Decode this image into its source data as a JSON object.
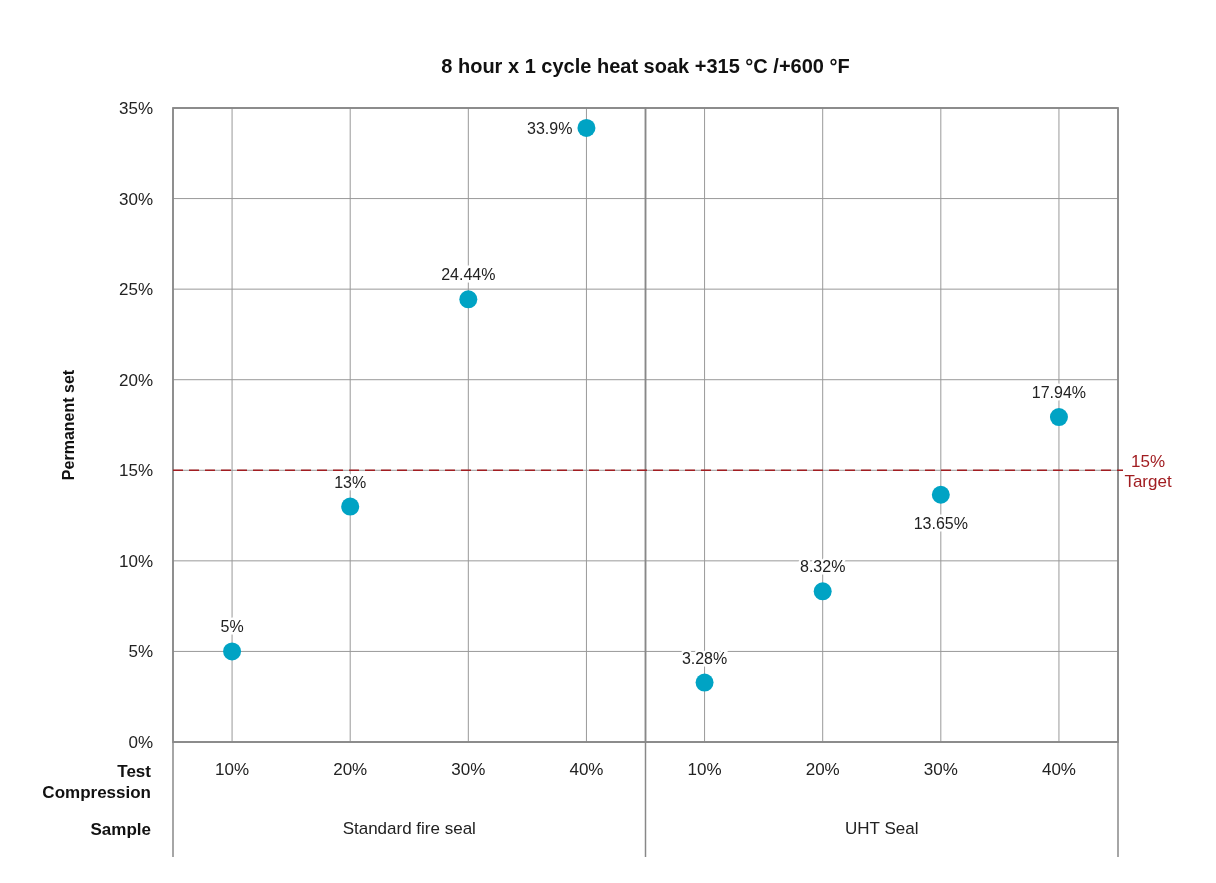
{
  "chart_data": {
    "type": "scatter",
    "title": "8 hour x 1 cycle heat soak +315 °C /+600 °F",
    "ylabel": "Permanent set",
    "xlabel": "Test Compression",
    "annotations": [
      "Sample",
      "Standard fire seal",
      "UHT Seal"
    ],
    "categories": [
      "10%",
      "20%",
      "30%",
      "40%",
      "10%",
      "20%",
      "30%",
      "40%"
    ],
    "values": [
      5,
      13,
      24.44,
      33.9,
      3.28,
      8.32,
      13.65,
      17.94
    ],
    "value_labels": [
      "5%",
      "13%",
      "24.44%",
      "33.9%",
      "3.28%",
      "8.32%",
      "13.65%",
      "17.94%"
    ],
    "color": "#00a3c4",
    "marker": "circle",
    "ylim": [
      0,
      35
    ],
    "yticks": [
      {
        "value": 0,
        "label": "0%"
      },
      {
        "value": 5,
        "label": "5%"
      },
      {
        "value": 10,
        "label": "10%"
      },
      {
        "value": 15,
        "label": "15%"
      },
      {
        "value": 20,
        "label": "20%"
      },
      {
        "value": 25,
        "label": "25%"
      },
      {
        "value": 30,
        "label": "30%"
      },
      {
        "value": 35,
        "label": "35%"
      }
    ],
    "grid": true,
    "ref_lines": [
      {
        "axis": "y",
        "value": 15,
        "label": "15% Target",
        "color": "#a11d21",
        "line_style": "dashed"
      }
    ]
  }
}
